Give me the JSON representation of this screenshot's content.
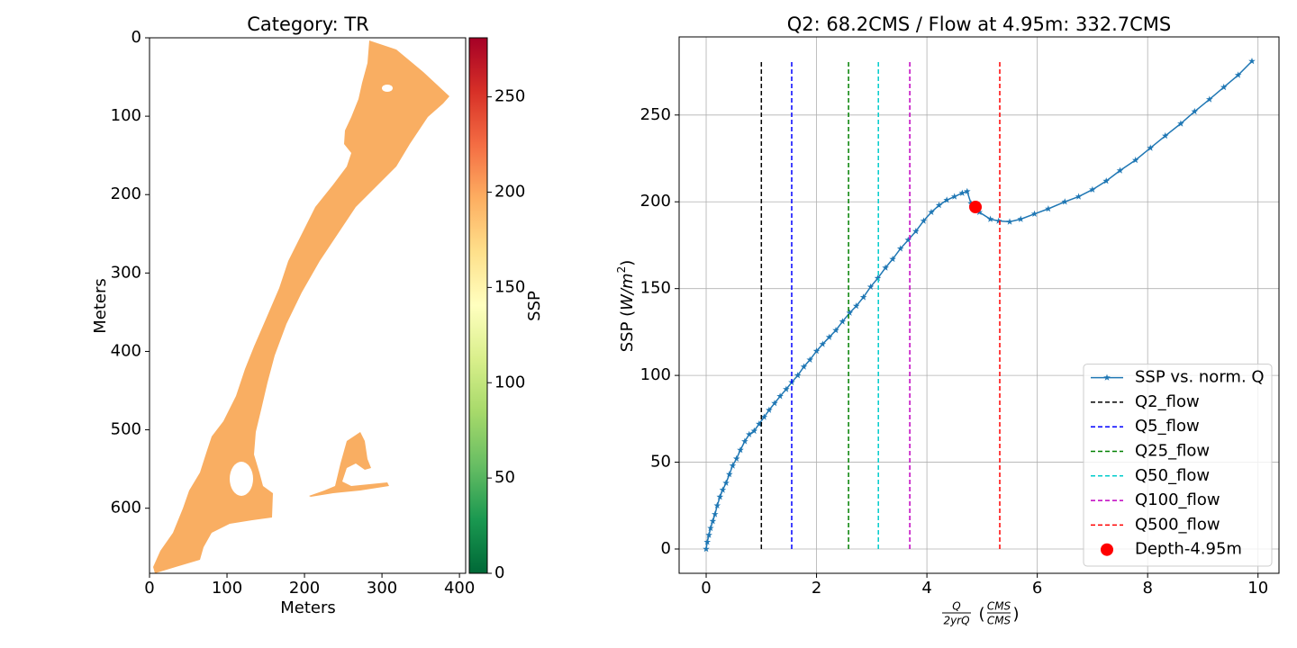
{
  "chart_data": [
    {
      "type": "image",
      "title": "Category: TR",
      "xlabel": "Meters",
      "ylabel": "Meters",
      "xlim": [
        0,
        408
      ],
      "ylim": [
        683,
        0
      ],
      "xticks": [
        0,
        100,
        200,
        300,
        400
      ],
      "yticks": [
        0,
        100,
        200,
        300,
        400,
        500,
        600
      ],
      "color": "#f9ae62",
      "colorbar": {
        "label": "SSP",
        "clim": [
          0,
          281
        ],
        "ticks": [
          0,
          50,
          100,
          150,
          200,
          250
        ],
        "colormap": [
          "#006837",
          "#1a9850",
          "#66bd63",
          "#a6d96a",
          "#d9ef8b",
          "#ffffbf",
          "#fee08b",
          "#fdae61",
          "#f46d43",
          "#d73027",
          "#a50026"
        ]
      }
    },
    {
      "type": "line",
      "title": "Q2: 68.2CMS / Flow at 4.95m: 332.7CMS",
      "xlabel": {
        "numerator": "Q",
        "denominator": "2yrQ",
        "open": "(",
        "unit_numerator": "CMS",
        "unit_denominator": "CMS",
        "close": ")"
      },
      "ylabel": {
        "text": "SSP (",
        "unit": "W/m",
        "exponent": "2",
        "close": ")"
      },
      "xlim": [
        -0.49,
        10.38
      ],
      "ylim": [
        -14,
        295
      ],
      "xticks": [
        0,
        2,
        4,
        6,
        8,
        10
      ],
      "yticks": [
        0,
        50,
        100,
        150,
        200,
        250
      ],
      "grid": true,
      "legend": "lower right",
      "series": [
        {
          "name": "SSP vs. norm. Q",
          "color": "#1f77b4",
          "type": "line",
          "marker": "star",
          "x": [
            0,
            0.02,
            0.05,
            0.08,
            0.12,
            0.16,
            0.2,
            0.25,
            0.3,
            0.36,
            0.42,
            0.48,
            0.55,
            0.62,
            0.7,
            0.78,
            0.87,
            0.96,
            1.05,
            1.14,
            1.24,
            1.34,
            1.45,
            1.55,
            1.66,
            1.77,
            1.88,
            2.0,
            2.11,
            2.23,
            2.35,
            2.47,
            2.6,
            2.72,
            2.85,
            2.98,
            3.11,
            3.25,
            3.38,
            3.52,
            3.66,
            3.8,
            3.94,
            4.08,
            4.22,
            4.36,
            4.5,
            4.64,
            4.73,
            4.8,
            4.95,
            5.15,
            5.3,
            5.5,
            5.7,
            5.95,
            6.2,
            6.5,
            6.75,
            7.0,
            7.25,
            7.5,
            7.78,
            8.05,
            8.32,
            8.6,
            8.85,
            9.12,
            9.38,
            9.64,
            9.89
          ],
          "values": [
            0,
            4,
            8,
            12,
            16,
            20,
            25,
            30,
            34,
            38,
            43,
            48,
            52,
            57,
            62,
            66,
            68,
            72,
            76,
            80,
            84,
            88,
            92,
            96,
            100,
            105,
            109,
            114,
            118,
            122,
            126,
            131,
            136,
            140,
            145,
            151,
            156,
            162,
            167,
            173,
            178,
            183,
            189,
            194,
            198,
            201,
            203,
            205,
            206,
            199,
            194,
            190,
            189,
            188.5,
            190,
            193,
            196,
            200,
            203,
            207,
            212,
            218,
            224,
            231,
            238,
            245,
            252,
            259,
            266,
            273,
            281
          ]
        },
        {
          "name": "Q2_flow",
          "color": "#000000",
          "type": "line",
          "linestyle": "dashed",
          "x": [
            1.0,
            1.0
          ],
          "values": [
            0,
            281
          ]
        },
        {
          "name": "Q5_flow",
          "color": "#0000ff",
          "type": "line",
          "linestyle": "dashed",
          "x": [
            1.55,
            1.55
          ],
          "values": [
            0,
            281
          ]
        },
        {
          "name": "Q25_flow",
          "color": "#008000",
          "type": "line",
          "linestyle": "dashed",
          "x": [
            2.58,
            2.58
          ],
          "values": [
            0,
            281
          ]
        },
        {
          "name": "Q50_flow",
          "color": "#00cccc",
          "type": "line",
          "linestyle": "dashed",
          "x": [
            3.12,
            3.12
          ],
          "values": [
            0,
            281
          ]
        },
        {
          "name": "Q100_flow",
          "color": "#c000c0",
          "type": "line",
          "linestyle": "dashed",
          "x": [
            3.69,
            3.69
          ],
          "values": [
            0,
            281
          ]
        },
        {
          "name": "Q500_flow",
          "color": "#ff0000",
          "type": "line",
          "linestyle": "dashed",
          "x": [
            5.32,
            5.32
          ],
          "values": [
            0,
            281
          ]
        },
        {
          "name": "Depth-4.95m",
          "color": "#ff0000",
          "type": "scatter",
          "marker": "circle",
          "x": [
            4.88
          ],
          "values": [
            197
          ]
        }
      ]
    }
  ]
}
